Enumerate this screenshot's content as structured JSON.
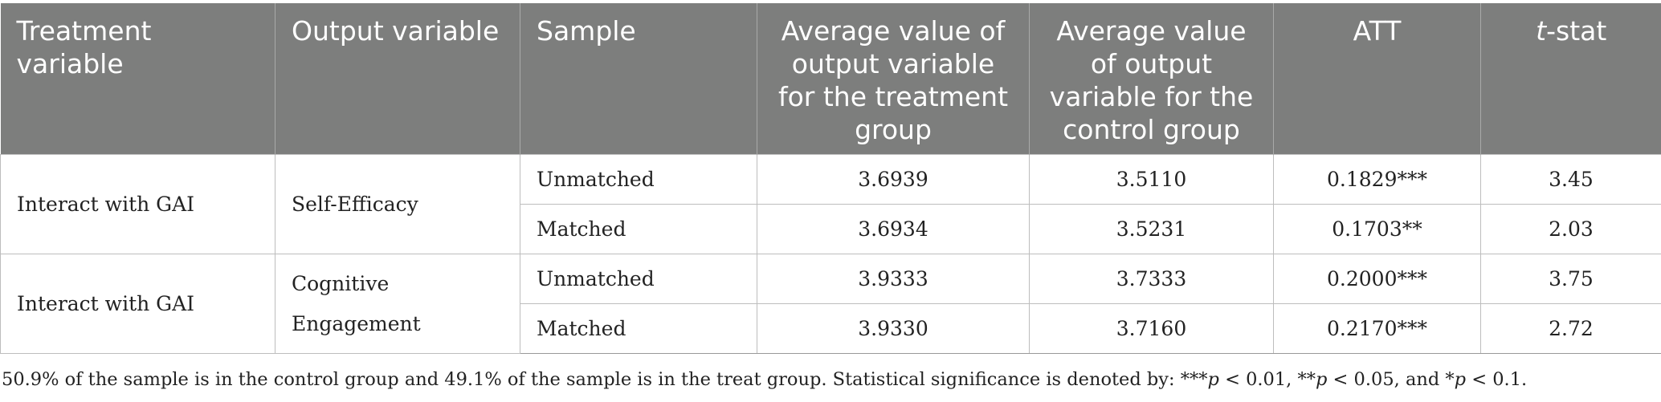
{
  "table": {
    "headers": [
      "Treatment variable",
      "Output variable",
      "Sample",
      "Average value of output variable for the treatment group",
      "Average value of output variable for the control group",
      "ATT",
      "-stat"
    ],
    "header_t_italic": "t",
    "groups": [
      {
        "treatment": "Interact with GAI",
        "output": "Self-Efficacy",
        "rows": [
          {
            "sample": "Unmatched",
            "treat_avg": "3.6939",
            "control_avg": "3.5110",
            "att": "0.1829***",
            "tstat": "3.45"
          },
          {
            "sample": "Matched",
            "treat_avg": "3.6934",
            "control_avg": "3.5231",
            "att": "0.1703**",
            "tstat": "2.03"
          }
        ]
      },
      {
        "treatment": "Interact with GAI",
        "output": "Cognitive Engagement",
        "rows": [
          {
            "sample": "Unmatched",
            "treat_avg": "3.9333",
            "control_avg": "3.7333",
            "att": "0.2000***",
            "tstat": "3.75"
          },
          {
            "sample": "Matched",
            "treat_avg": "3.9330",
            "control_avg": "3.7160",
            "att": "0.2170***",
            "tstat": "2.72"
          }
        ]
      }
    ]
  },
  "footnote": {
    "part1": "50.9% of the sample is in the control group and 49.1% of the sample is in the treat group. Statistical significance is denoted by: ***",
    "p1": "p",
    "part2": " < 0.01, **",
    "p2": "p",
    "part3": " < 0.05, and *",
    "p3": "p",
    "part4": " < 0.1."
  }
}
